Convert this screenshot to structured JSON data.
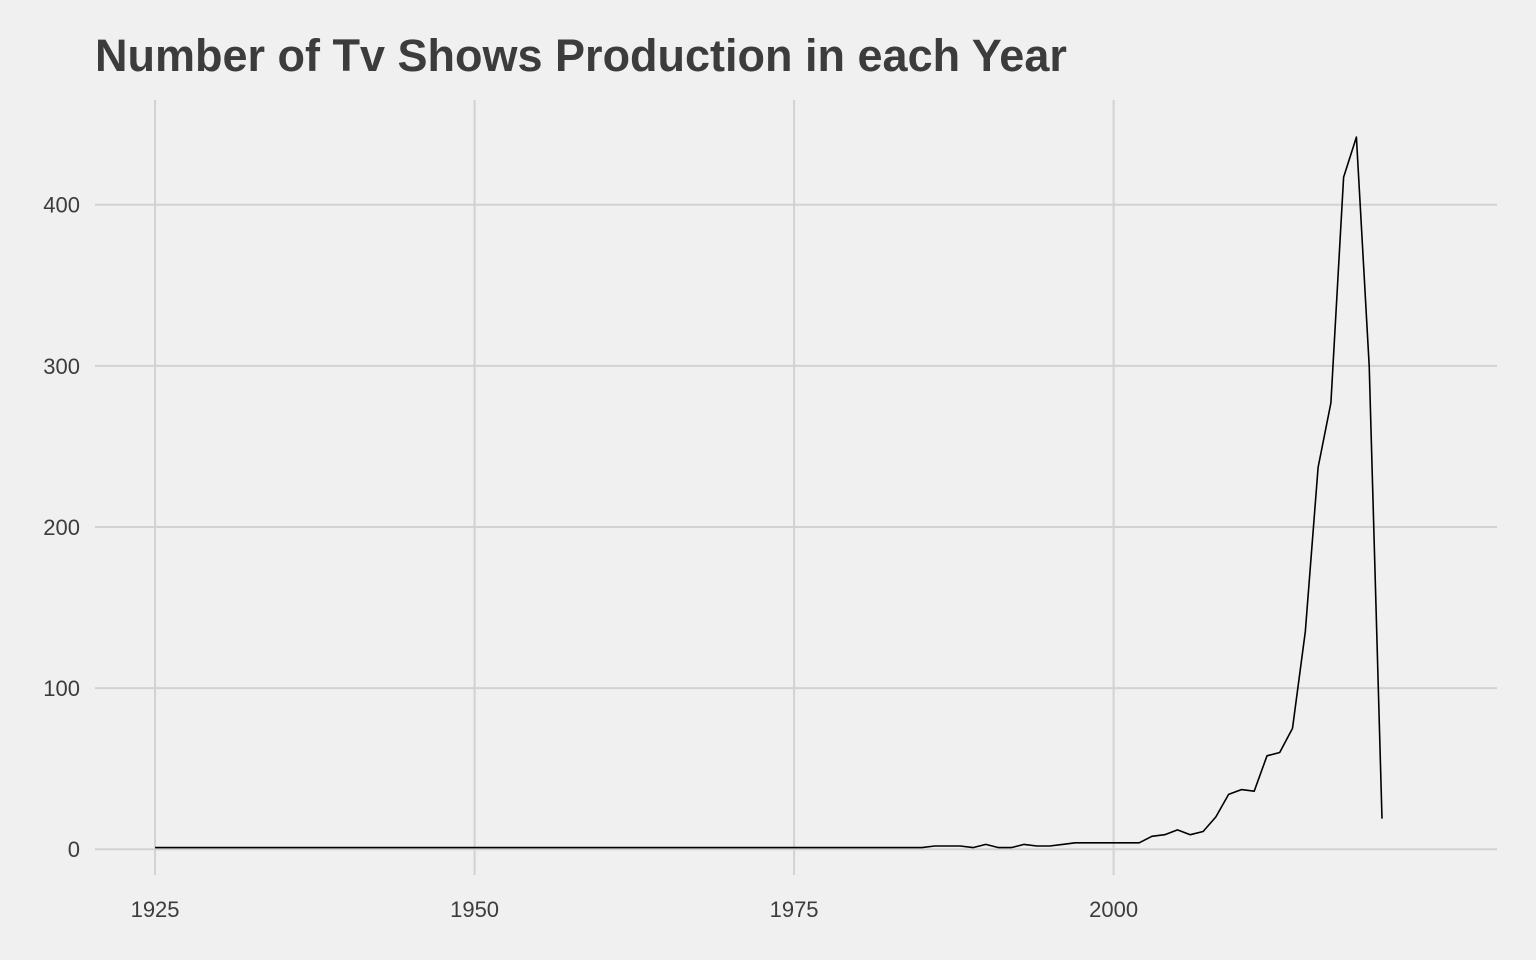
{
  "chart_data": {
    "type": "line",
    "title": "Number of Tv Shows Production in each Year",
    "xlabel": "",
    "ylabel": "",
    "xlim": [
      1920.3,
      2030
    ],
    "ylim": [
      -16,
      465
    ],
    "x_ticks": [
      1925,
      1950,
      1975,
      2000
    ],
    "y_ticks": [
      0,
      100,
      200,
      300,
      400
    ],
    "grid": true,
    "legend": "none",
    "colors": {
      "background": "#f0f0f0",
      "grid": "#d2d2d2",
      "line": "#000000",
      "text": "#3c3c3c"
    },
    "series": [
      {
        "x": [
          1925,
          1945,
          1946,
          1963,
          1967,
          1972,
          1974,
          1977,
          1979,
          1981,
          1985,
          1986,
          1988,
          1989,
          1990,
          1991,
          1992,
          1993,
          1994,
          1995,
          1996,
          1997,
          1998,
          1999,
          2000,
          2001,
          2002,
          2003,
          2004,
          2005,
          2006,
          2007,
          2008,
          2009,
          2010,
          2011,
          2012,
          2013,
          2014,
          2015,
          2016,
          2017,
          2018,
          2019,
          2020,
          2021
        ],
        "y": [
          1,
          1,
          1,
          1,
          1,
          1,
          1,
          1,
          1,
          1,
          1,
          2,
          2,
          1,
          3,
          1,
          1,
          3,
          2,
          2,
          3,
          4,
          4,
          4,
          4,
          4,
          4,
          8,
          9,
          12,
          9,
          11,
          20,
          34,
          37,
          36,
          58,
          60,
          75,
          135,
          237,
          277,
          417,
          442,
          300,
          19
        ]
      }
    ]
  }
}
